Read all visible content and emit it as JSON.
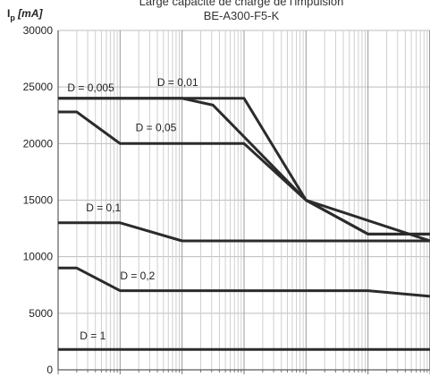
{
  "chart_data": {
    "type": "line",
    "title": "Large capacité de charge de l'impulsion",
    "subtitle": "BE-A300-F5-K",
    "ylabel_main": "I",
    "ylabel_sub": "p",
    "ylabel_unit": " [mA]",
    "xlabel": "",
    "x_scale": "log",
    "x_decades": 6,
    "ylim": [
      0,
      30000
    ],
    "yticks": [
      0,
      5000,
      10000,
      15000,
      20000,
      25000,
      30000
    ],
    "ytick_labels": [
      "0",
      "5000",
      "10000",
      "15000",
      "20000",
      "25000",
      "30000"
    ],
    "grid": true,
    "series": [
      {
        "name": "D = 0,005",
        "x": [
          0,
          3,
          4,
          5,
          6
        ],
        "y": [
          24000,
          24000,
          15000,
          12000,
          12000
        ]
      },
      {
        "name": "D = 0,01",
        "x": [
          0,
          2,
          2.5,
          4,
          5,
          6
        ],
        "y": [
          24000,
          24000,
          23400,
          15000,
          12000,
          12000
        ]
      },
      {
        "name": "D = 0,05",
        "x": [
          0,
          0.3,
          1,
          3,
          4,
          6
        ],
        "y": [
          22800,
          22800,
          20000,
          20000,
          15000,
          11400
        ]
      },
      {
        "name": "D = 0,1",
        "x": [
          0,
          1,
          2,
          6
        ],
        "y": [
          13000,
          13000,
          11400,
          11400
        ]
      },
      {
        "name": "D = 0,2",
        "x": [
          0,
          0.3,
          1,
          5,
          6
        ],
        "y": [
          9000,
          9000,
          7000,
          7000,
          6500
        ]
      },
      {
        "name": "D = 1",
        "x": [
          0,
          6
        ],
        "y": [
          1800,
          1800
        ]
      }
    ],
    "annotations": [
      {
        "text": "D = 0,005",
        "x": 0.15,
        "y": 24600
      },
      {
        "text": "D = 0,01",
        "x": 1.6,
        "y": 25100
      },
      {
        "text": "D = 0,05",
        "x": 1.25,
        "y": 21100
      },
      {
        "text": "D = 0,1",
        "x": 0.45,
        "y": 14000
      },
      {
        "text": "D = 0,2",
        "x": 1.0,
        "y": 8000
      },
      {
        "text": "D = 1",
        "x": 0.35,
        "y": 2700
      }
    ]
  }
}
